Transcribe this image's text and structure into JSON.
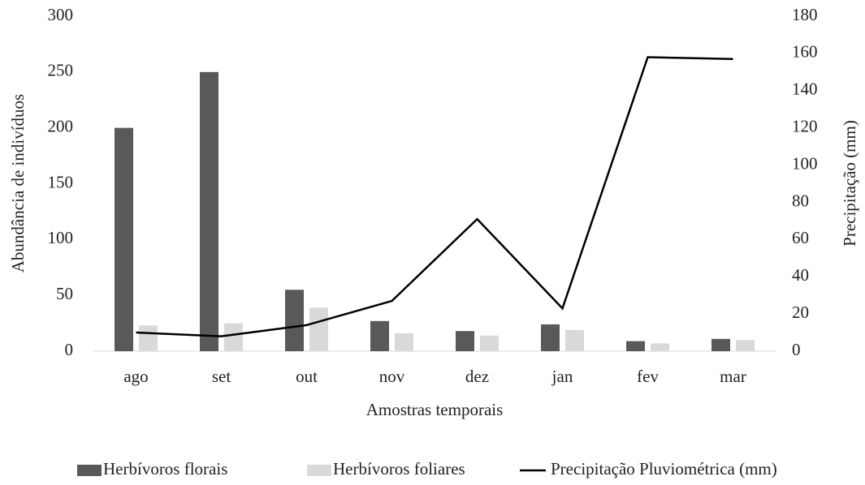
{
  "chart_data": {
    "type": "bar_line",
    "xlabel": "Amostras temporais",
    "ylabel": "Abundância de indivíduos",
    "y2label": "Precipitação (mm)",
    "categories": [
      "ago",
      "set",
      "out",
      "nov",
      "dez",
      "jan",
      "fev",
      "mar"
    ],
    "series": [
      {
        "name": "Herbívoros florais",
        "type": "bar",
        "color": "#595959",
        "values": [
          200,
          250,
          55,
          27,
          18,
          24,
          9,
          11
        ]
      },
      {
        "name": "Herbívoros foliares",
        "type": "bar",
        "color": "#d9d9d9",
        "values": [
          23,
          25,
          39,
          16,
          14,
          19,
          7,
          10
        ]
      },
      {
        "name": "Precipitação Pluviométrica (mm)",
        "type": "line",
        "axis": "y2",
        "color": "#000000",
        "values": [
          10,
          8,
          14,
          27,
          71,
          23,
          158,
          157
        ]
      }
    ],
    "ylim": [
      0,
      300
    ],
    "yticks": [
      0,
      50,
      100,
      150,
      200,
      250,
      300
    ],
    "y2lim": [
      0,
      180
    ],
    "y2ticks": [
      0,
      20,
      40,
      60,
      80,
      100,
      120,
      140,
      160,
      180
    ],
    "legend": "bottom",
    "grid": false
  }
}
